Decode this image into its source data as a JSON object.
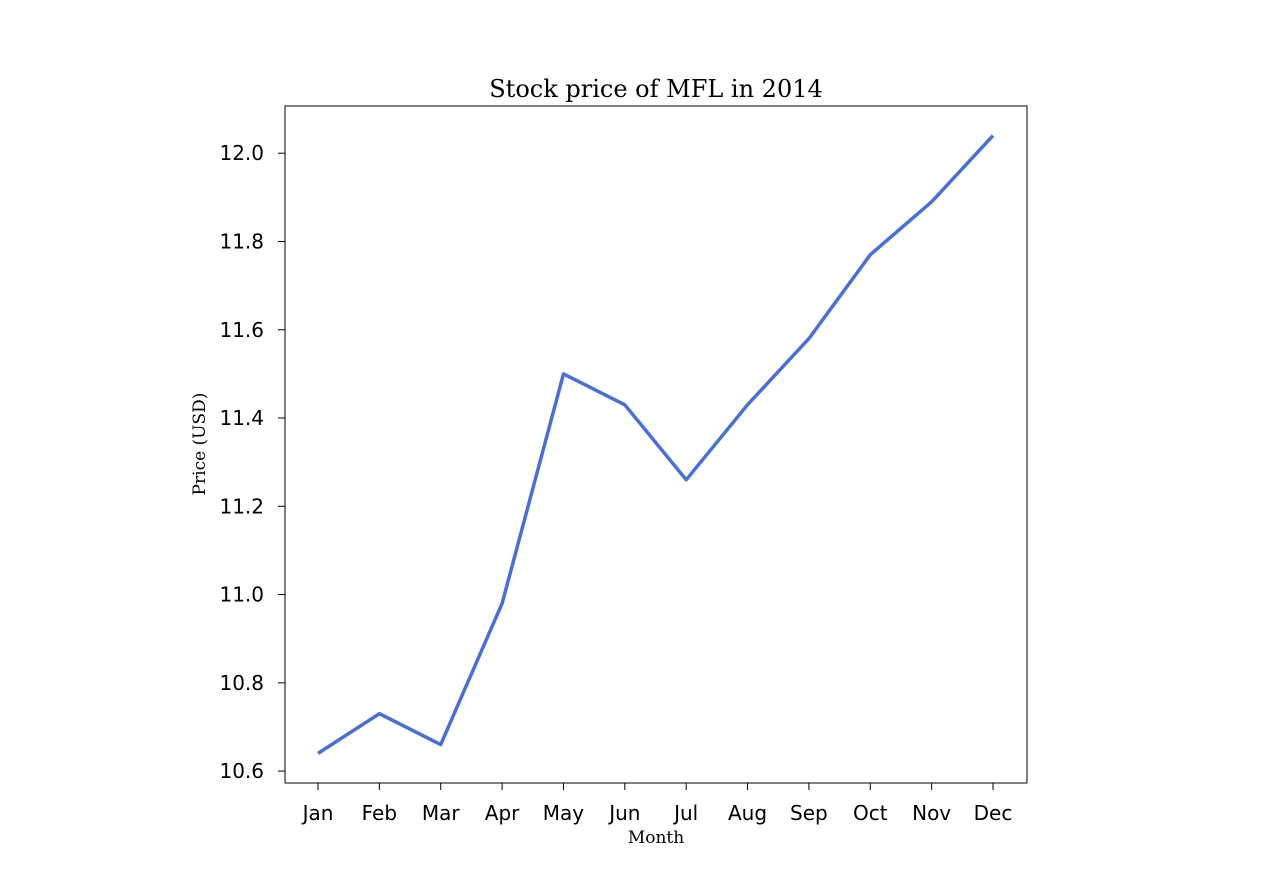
{
  "chart_data": {
    "type": "line",
    "title": "Stock price of MFL in 2014",
    "xlabel": "Month",
    "ylabel": "Price (USD)",
    "categories": [
      "Jan",
      "Feb",
      "Mar",
      "Apr",
      "May",
      "Jun",
      "Jul",
      "Aug",
      "Sep",
      "Oct",
      "Nov",
      "Dec"
    ],
    "series": [
      {
        "values": [
          10.64,
          10.73,
          10.66,
          10.98,
          11.5,
          11.43,
          11.26,
          11.43,
          11.58,
          11.77,
          11.89,
          12.04
        ]
      }
    ],
    "ylim": [
      10.573,
      12.107
    ],
    "yticks": [
      10.6,
      10.8,
      11.0,
      11.2,
      11.4,
      11.6,
      11.8,
      12.0
    ],
    "ytick_labels": [
      "10.6",
      "10.8",
      "11.0",
      "11.2",
      "11.4",
      "11.6",
      "11.8",
      "12.0"
    ],
    "grid": false,
    "line_color": "#4a6fd1"
  }
}
